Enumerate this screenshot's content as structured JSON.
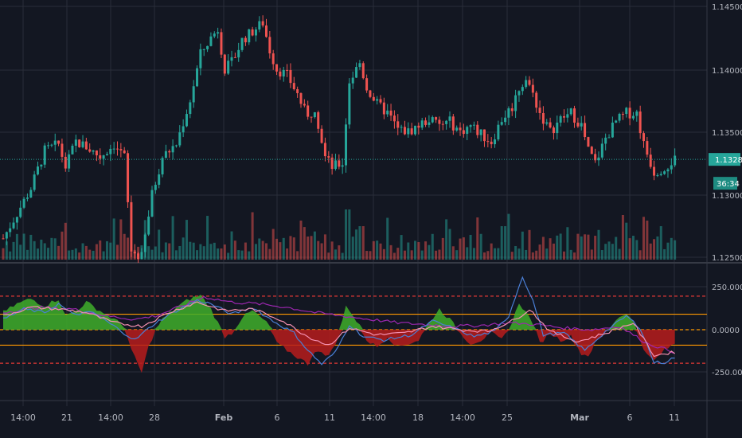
{
  "colors": {
    "background": "#131722",
    "grid": "#2a2e39",
    "bull": "#26a69a",
    "bear": "#ef5350",
    "price_line": "#26a69a",
    "band_red": "#e53935",
    "band_orange": "#ff9800",
    "osc_fill_green": "#3fae2a",
    "osc_fill_red": "#b71c1c",
    "line_purple": "#9c27b0",
    "line_blue": "#4a7fd6",
    "line_pink": "#f48fb1"
  },
  "price_axis": {
    "labels": [
      "1.14500",
      "1.14000",
      "1.13500",
      "1.13000",
      "1.12500"
    ],
    "current_price": "1.13280",
    "countdown": "36:34"
  },
  "osc_axis": {
    "labels": [
      "250.0000",
      "0.0000",
      "-250.0000"
    ]
  },
  "time_axis": {
    "labels": [
      {
        "text": "14:00",
        "bold": false
      },
      {
        "text": "21",
        "bold": false
      },
      {
        "text": "14:00",
        "bold": false
      },
      {
        "text": "28",
        "bold": false
      },
      {
        "text": "Feb",
        "bold": true
      },
      {
        "text": "6",
        "bold": false
      },
      {
        "text": "11",
        "bold": false
      },
      {
        "text": "14:00",
        "bold": false
      },
      {
        "text": "18",
        "bold": false
      },
      {
        "text": "14:00",
        "bold": false
      },
      {
        "text": "25",
        "bold": false
      },
      {
        "text": "Mar",
        "bold": true
      },
      {
        "text": "6",
        "bold": false
      },
      {
        "text": "11",
        "bold": false
      }
    ]
  },
  "chart_data": [
    {
      "type": "candlestick",
      "title": "",
      "ylim": [
        1.125,
        1.145
      ],
      "y_ticks": [
        1.145,
        1.14,
        1.135,
        1.13,
        1.125
      ],
      "current_price": 1.1328,
      "close_path": [
        [
          0,
          1.1265
        ],
        [
          4,
          1.1285
        ],
        [
          8,
          1.1305
        ],
        [
          12,
          1.1335
        ],
        [
          16,
          1.134
        ],
        [
          18,
          1.1322
        ],
        [
          21,
          1.1342
        ],
        [
          24,
          1.1338
        ],
        [
          28,
          1.133
        ],
        [
          32,
          1.134
        ],
        [
          35,
          1.133
        ],
        [
          37,
          1.1255
        ],
        [
          40,
          1.125
        ],
        [
          43,
          1.13
        ],
        [
          46,
          1.133
        ],
        [
          50,
          1.134
        ],
        [
          54,
          1.1375
        ],
        [
          57,
          1.1412
        ],
        [
          60,
          1.1425
        ],
        [
          62,
          1.1432
        ],
        [
          64,
          1.14
        ],
        [
          66,
          1.1405
        ],
        [
          69,
          1.1423
        ],
        [
          72,
          1.143
        ],
        [
          75,
          1.1437
        ],
        [
          77,
          1.1415
        ],
        [
          79,
          1.14
        ],
        [
          82,
          1.1395
        ],
        [
          85,
          1.138
        ],
        [
          88,
          1.136
        ],
        [
          90,
          1.137
        ],
        [
          93,
          1.133
        ],
        [
          95,
          1.1322
        ],
        [
          98,
          1.1325
        ],
        [
          100,
          1.139
        ],
        [
          103,
          1.1405
        ],
        [
          105,
          1.1385
        ],
        [
          108,
          1.1372
        ],
        [
          111,
          1.1365
        ],
        [
          114,
          1.1352
        ],
        [
          117,
          1.135
        ],
        [
          120,
          1.1355
        ],
        [
          123,
          1.136
        ],
        [
          126,
          1.1355
        ],
        [
          129,
          1.1358
        ],
        [
          132,
          1.135
        ],
        [
          135,
          1.1355
        ],
        [
          138,
          1.1348
        ],
        [
          141,
          1.1342
        ],
        [
          144,
          1.136
        ],
        [
          147,
          1.137
        ],
        [
          149,
          1.1385
        ],
        [
          151,
          1.1392
        ],
        [
          153,
          1.138
        ],
        [
          155,
          1.1365
        ],
        [
          158,
          1.135
        ],
        [
          161,
          1.136
        ],
        [
          164,
          1.1365
        ],
        [
          167,
          1.1355
        ],
        [
          169,
          1.1335
        ],
        [
          171,
          1.1325
        ],
        [
          174,
          1.1345
        ],
        [
          177,
          1.1358
        ],
        [
          180,
          1.1365
        ],
        [
          183,
          1.1365
        ],
        [
          185,
          1.134
        ],
        [
          188,
          1.1318
        ],
        [
          191,
          1.1322
        ],
        [
          194,
          1.1328
        ]
      ],
      "volume_spikes": [
        [
          0.32,
          0.2
        ],
        [
          0.37,
          0.85
        ],
        [
          0.4,
          0.55
        ],
        [
          0.44,
          0.7
        ],
        [
          0.51,
          0.9
        ],
        [
          0.53,
          0.6
        ],
        [
          0.57,
          0.75
        ],
        [
          0.66,
          0.55
        ],
        [
          0.74,
          0.6
        ],
        [
          0.92,
          0.8
        ],
        [
          0.95,
          0.7
        ]
      ]
    },
    {
      "type": "area",
      "title": "",
      "ylim": [
        -350,
        350
      ],
      "y_ticks": [
        250,
        0,
        -250
      ],
      "reference_lines": [
        {
          "value": 195,
          "color": "#e53935",
          "style": "dashed"
        },
        {
          "value": 90,
          "color": "#ff9800",
          "style": "solid"
        },
        {
          "value": 0,
          "color": "#ff9800",
          "style": "dashed"
        },
        {
          "value": -90,
          "color": "#ff9800",
          "style": "solid"
        },
        {
          "value": -195,
          "color": "#e53935",
          "style": "dashed"
        }
      ],
      "series": [
        {
          "points": [
            [
              0,
              100
            ],
            [
              4,
              150
            ],
            [
              8,
              180
            ],
            [
              12,
              140
            ],
            [
              16,
              180
            ],
            [
              18,
              80
            ],
            [
              21,
              110
            ],
            [
              24,
              160
            ],
            [
              28,
              110
            ],
            [
              32,
              60
            ],
            [
              35,
              20
            ],
            [
              37,
              -120
            ],
            [
              40,
              -250
            ],
            [
              42,
              -100
            ],
            [
              44,
              0
            ],
            [
              46,
              60
            ],
            [
              50,
              130
            ],
            [
              54,
              180
            ],
            [
              57,
              200
            ],
            [
              60,
              120
            ],
            [
              62,
              40
            ],
            [
              64,
              -40
            ],
            [
              66,
              -20
            ],
            [
              69,
              70
            ],
            [
              72,
              110
            ],
            [
              75,
              60
            ],
            [
              77,
              20
            ],
            [
              79,
              -80
            ],
            [
              82,
              -120
            ],
            [
              85,
              -160
            ],
            [
              88,
              -200
            ],
            [
              90,
              -120
            ],
            [
              93,
              -150
            ],
            [
              95,
              -120
            ],
            [
              97,
              -40
            ],
            [
              99,
              150
            ],
            [
              101,
              80
            ],
            [
              103,
              20
            ],
            [
              105,
              -60
            ],
            [
              108,
              -100
            ],
            [
              111,
              -40
            ],
            [
              114,
              -100
            ],
            [
              117,
              -80
            ],
            [
              120,
              -60
            ],
            [
              123,
              40
            ],
            [
              126,
              120
            ],
            [
              129,
              60
            ],
            [
              132,
              -20
            ],
            [
              135,
              -80
            ],
            [
              138,
              -60
            ],
            [
              141,
              -20
            ],
            [
              144,
              -60
            ],
            [
              147,
              40
            ],
            [
              149,
              160
            ],
            [
              151,
              100
            ],
            [
              153,
              40
            ],
            [
              155,
              -80
            ],
            [
              158,
              -20
            ],
            [
              161,
              -60
            ],
            [
              164,
              -40
            ],
            [
              167,
              -140
            ],
            [
              169,
              -150
            ],
            [
              171,
              -80
            ],
            [
              174,
              -20
            ],
            [
              177,
              60
            ],
            [
              180,
              100
            ],
            [
              182,
              40
            ],
            [
              184,
              -60
            ],
            [
              186,
              -150
            ],
            [
              188,
              -180
            ],
            [
              191,
              -120
            ],
            [
              194,
              -80
            ]
          ]
        },
        {
          "points": [
            [
              0,
              100
            ],
            [
              10,
              130
            ],
            [
              20,
              120
            ],
            [
              30,
              80
            ],
            [
              38,
              60
            ],
            [
              44,
              80
            ],
            [
              52,
              140
            ],
            [
              58,
              190
            ],
            [
              66,
              160
            ],
            [
              74,
              150
            ],
            [
              82,
              130
            ],
            [
              90,
              100
            ],
            [
              98,
              80
            ],
            [
              106,
              60
            ],
            [
              114,
              40
            ],
            [
              122,
              30
            ],
            [
              130,
              20
            ],
            [
              138,
              25
            ],
            [
              146,
              40
            ],
            [
              154,
              30
            ],
            [
              162,
              10
            ],
            [
              170,
              0
            ],
            [
              178,
              20
            ],
            [
              186,
              -80
            ],
            [
              194,
              -130
            ]
          ]
        },
        {
          "points": [
            [
              0,
              60
            ],
            [
              6,
              120
            ],
            [
              12,
              100
            ],
            [
              16,
              150
            ],
            [
              20,
              90
            ],
            [
              26,
              100
            ],
            [
              32,
              20
            ],
            [
              38,
              -60
            ],
            [
              44,
              40
            ],
            [
              50,
              110
            ],
            [
              56,
              170
            ],
            [
              60,
              150
            ],
            [
              66,
              90
            ],
            [
              72,
              130
            ],
            [
              78,
              50
            ],
            [
              84,
              -20
            ],
            [
              88,
              -120
            ],
            [
              92,
              -200
            ],
            [
              96,
              -130
            ],
            [
              100,
              30
            ],
            [
              104,
              -40
            ],
            [
              110,
              -60
            ],
            [
              118,
              -30
            ],
            [
              124,
              50
            ],
            [
              130,
              10
            ],
            [
              136,
              -40
            ],
            [
              142,
              -10
            ],
            [
              146,
              80
            ],
            [
              150,
              310
            ],
            [
              153,
              170
            ],
            [
              156,
              -30
            ],
            [
              162,
              -20
            ],
            [
              168,
              -120
            ],
            [
              174,
              -10
            ],
            [
              180,
              80
            ],
            [
              184,
              10
            ],
            [
              188,
              -190
            ],
            [
              191,
              -190
            ],
            [
              194,
              -160
            ]
          ]
        },
        {
          "points": [
            [
              0,
              80
            ],
            [
              8,
              130
            ],
            [
              16,
              120
            ],
            [
              24,
              100
            ],
            [
              32,
              40
            ],
            [
              40,
              20
            ],
            [
              48,
              100
            ],
            [
              56,
              160
            ],
            [
              64,
              110
            ],
            [
              72,
              120
            ],
            [
              80,
              60
            ],
            [
              88,
              -40
            ],
            [
              94,
              -90
            ],
            [
              100,
              10
            ],
            [
              108,
              -30
            ],
            [
              116,
              -20
            ],
            [
              124,
              20
            ],
            [
              132,
              0
            ],
            [
              140,
              -10
            ],
            [
              148,
              60
            ],
            [
              152,
              120
            ],
            [
              158,
              -10
            ],
            [
              166,
              -70
            ],
            [
              174,
              -20
            ],
            [
              182,
              40
            ],
            [
              188,
              -150
            ],
            [
              194,
              -130
            ]
          ]
        }
      ]
    }
  ]
}
